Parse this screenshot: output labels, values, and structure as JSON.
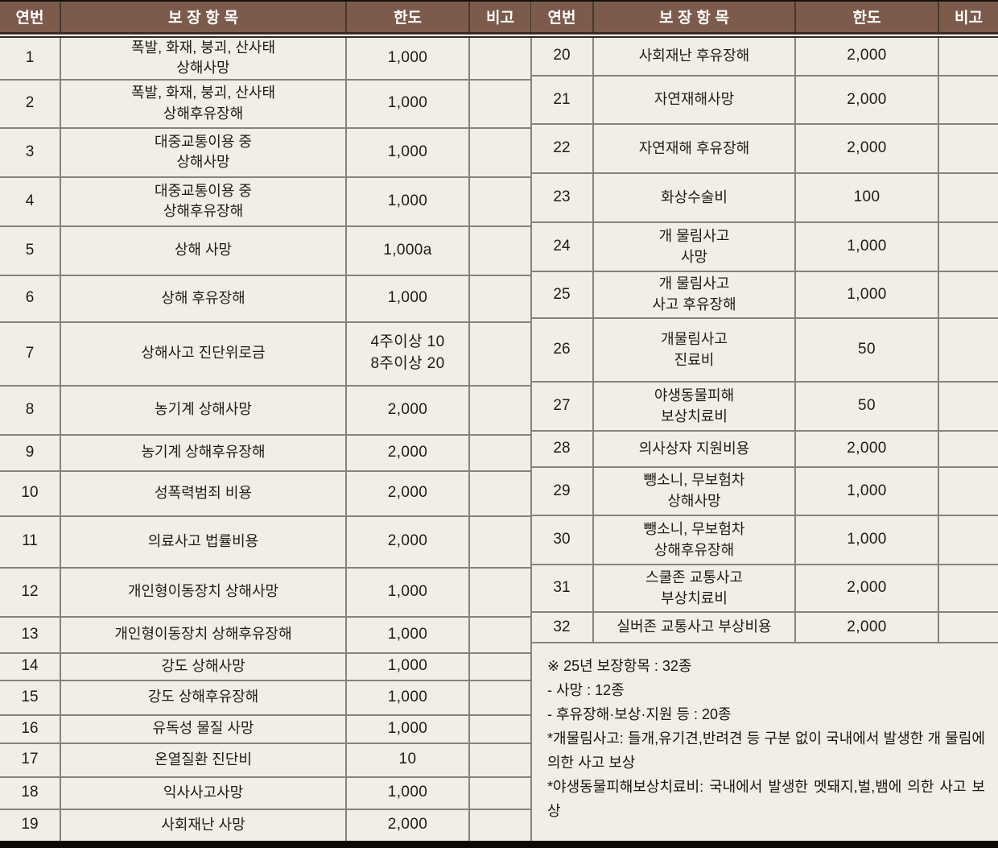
{
  "header": {
    "col_no": "연번",
    "col_item": "보장항목",
    "col_limit": "한도",
    "col_note": "비고"
  },
  "table_left": {
    "rows": [
      {
        "no": "1",
        "item": [
          "폭발, 화재, 붕괴, 산사태",
          "상해사망"
        ],
        "limit": [
          "1,000"
        ],
        "remark": ""
      },
      {
        "no": "2",
        "item": [
          "폭발, 화재, 붕괴, 산사태",
          "상해후유장해"
        ],
        "limit": [
          "1,000"
        ],
        "remark": ""
      },
      {
        "no": "3",
        "item": [
          "대중교통이용 중",
          "상해사망"
        ],
        "limit": [
          "1,000"
        ],
        "remark": ""
      },
      {
        "no": "4",
        "item": [
          "대중교통이용 중",
          "상해후유장해"
        ],
        "limit": [
          "1,000"
        ],
        "remark": ""
      },
      {
        "no": "5",
        "item": [
          "상해 사망"
        ],
        "limit": [
          "1,000a"
        ],
        "remark": ""
      },
      {
        "no": "6",
        "item": [
          "상해 후유장해"
        ],
        "limit": [
          "1,000"
        ],
        "remark": ""
      },
      {
        "no": "7",
        "item": [
          "상해사고 진단위로금"
        ],
        "limit": [
          "4주이상 10",
          "8주이상 20"
        ],
        "remark": ""
      },
      {
        "no": "8",
        "item": [
          "농기계 상해사망"
        ],
        "limit": [
          "2,000"
        ],
        "remark": ""
      },
      {
        "no": "9",
        "item": [
          "농기계 상해후유장해"
        ],
        "limit": [
          "2,000"
        ],
        "remark": ""
      },
      {
        "no": "10",
        "item": [
          "성폭력범죄 비용"
        ],
        "limit": [
          "2,000"
        ],
        "remark": ""
      },
      {
        "no": "11",
        "item": [
          "의료사고 법률비용"
        ],
        "limit": [
          "2,000"
        ],
        "remark": ""
      },
      {
        "no": "12",
        "item": [
          "개인형이동장치 상해사망"
        ],
        "limit": [
          "1,000"
        ],
        "remark": ""
      },
      {
        "no": "13",
        "item": [
          "개인형이동장치 상해후유장해"
        ],
        "limit": [
          "1,000"
        ],
        "remark": ""
      },
      {
        "no": "14",
        "item": [
          "강도 상해사망"
        ],
        "limit": [
          "1,000"
        ],
        "remark": ""
      },
      {
        "no": "15",
        "item": [
          "강도 상해후유장해"
        ],
        "limit": [
          "1,000"
        ],
        "remark": ""
      },
      {
        "no": "16",
        "item": [
          "유독성 물질 사망"
        ],
        "limit": [
          "1,000"
        ],
        "remark": ""
      },
      {
        "no": "17",
        "item": [
          "온열질환 진단비"
        ],
        "limit": [
          "10"
        ],
        "remark": ""
      },
      {
        "no": "18",
        "item": [
          "익사사고사망"
        ],
        "limit": [
          "1,000"
        ],
        "remark": ""
      },
      {
        "no": "19",
        "item": [
          "사회재난 사망"
        ],
        "limit": [
          "2,000"
        ],
        "remark": ""
      }
    ]
  },
  "table_right": {
    "rows": [
      {
        "no": "20",
        "item": [
          "사회재난 후유장해"
        ],
        "limit": [
          "2,000"
        ],
        "remark": ""
      },
      {
        "no": "21",
        "item": [
          "자연재해사망"
        ],
        "limit": [
          "2,000"
        ],
        "remark": ""
      },
      {
        "no": "22",
        "item": [
          "자연재해 후유장해"
        ],
        "limit": [
          "2,000"
        ],
        "remark": ""
      },
      {
        "no": "23",
        "item": [
          "화상수술비"
        ],
        "limit": [
          "100"
        ],
        "remark": ""
      },
      {
        "no": "24",
        "item": [
          "개 물림사고",
          "사망"
        ],
        "limit": [
          "1,000"
        ],
        "remark": ""
      },
      {
        "no": "25",
        "item": [
          "개 물림사고",
          "사고 후유장해"
        ],
        "limit": [
          "1,000"
        ],
        "remark": ""
      },
      {
        "no": "26",
        "item": [
          "개물림사고",
          "진료비"
        ],
        "limit": [
          "50"
        ],
        "remark": ""
      },
      {
        "no": "27",
        "item": [
          "야생동물피해",
          "보상치료비"
        ],
        "limit": [
          "50"
        ],
        "remark": ""
      },
      {
        "no": "28",
        "item": [
          "의사상자 지원비용"
        ],
        "limit": [
          "2,000"
        ],
        "remark": ""
      },
      {
        "no": "29",
        "item": [
          "뺑소니, 무보험차",
          "상해사망"
        ],
        "limit": [
          "1,000"
        ],
        "remark": ""
      },
      {
        "no": "30",
        "item": [
          "뺑소니, 무보험차",
          "상해후유장해"
        ],
        "limit": [
          "1,000"
        ],
        "remark": ""
      },
      {
        "no": "31",
        "item": [
          "스쿨존 교통사고",
          "부상치료비"
        ],
        "limit": [
          "2,000"
        ],
        "remark": ""
      },
      {
        "no": "32",
        "item": [
          "실버존 교통사고 부상비용"
        ],
        "limit": [
          "2,000"
        ],
        "remark": ""
      }
    ]
  },
  "summary": {
    "lines": [
      "※ 25년 보장항목 : 32종",
      "- 사망 : 12종",
      "- 후유장해·보상·지원 등 : 20종",
      "*개물림사고: 들개,유기견,반려견 등 구분 없이 국내에서 발생한 개 물림에 의한 사고 보상",
      "*야생동물피해보상치료비: 국내에서 발생한 멧돼지,벌,뱀에 의한 사고 보상"
    ]
  },
  "colors": {
    "header_bg": "#7c5b4c",
    "header_text": "#ffffff",
    "body_bg": "#f2eee5",
    "grid_line": "#87837a",
    "bottom_bar": "#0c0a08"
  }
}
